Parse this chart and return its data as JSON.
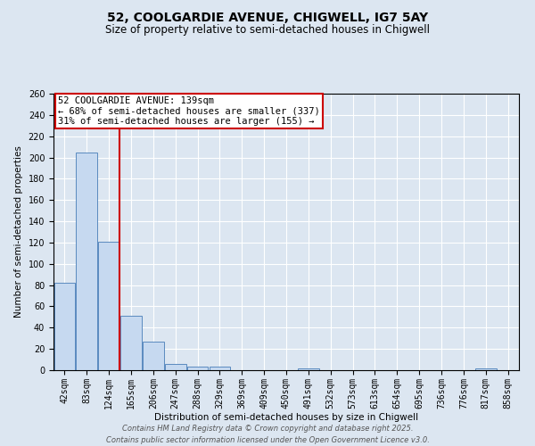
{
  "title1": "52, COOLGARDIE AVENUE, CHIGWELL, IG7 5AY",
  "title2": "Size of property relative to semi-detached houses in Chigwell",
  "xlabel": "Distribution of semi-detached houses by size in Chigwell",
  "ylabel": "Number of semi-detached properties",
  "categories": [
    "42sqm",
    "83sqm",
    "124sqm",
    "165sqm",
    "206sqm",
    "247sqm",
    "288sqm",
    "329sqm",
    "369sqm",
    "409sqm",
    "450sqm",
    "491sqm",
    "532sqm",
    "573sqm",
    "613sqm",
    "654sqm",
    "695sqm",
    "736sqm",
    "776sqm",
    "817sqm",
    "858sqm"
  ],
  "values": [
    82,
    205,
    121,
    51,
    27,
    6,
    3,
    3,
    0,
    0,
    0,
    2,
    0,
    0,
    0,
    0,
    0,
    0,
    0,
    2,
    0
  ],
  "bar_color": "#c6d9f0",
  "bar_edge_color": "#5a8abf",
  "vline_color": "#cc0000",
  "ylim": [
    0,
    260
  ],
  "yticks": [
    0,
    20,
    40,
    60,
    80,
    100,
    120,
    140,
    160,
    180,
    200,
    220,
    240,
    260
  ],
  "annotation_text": "52 COOLGARDIE AVENUE: 139sqm\n← 68% of semi-detached houses are smaller (337)\n31% of semi-detached houses are larger (155) →",
  "annotation_box_color": "#ffffff",
  "annotation_box_edge": "#cc0000",
  "background_color": "#dce6f1",
  "plot_bg_color": "#dce6f1",
  "footer_line1": "Contains HM Land Registry data © Crown copyright and database right 2025.",
  "footer_line2": "Contains public sector information licensed under the Open Government Licence v3.0.",
  "grid_color": "#ffffff",
  "title1_fontsize": 10,
  "title2_fontsize": 8.5,
  "annotation_fontsize": 7.5,
  "tick_fontsize": 7,
  "xlabel_fontsize": 7.5,
  "ylabel_fontsize": 7.5,
  "footer_fontsize": 6
}
